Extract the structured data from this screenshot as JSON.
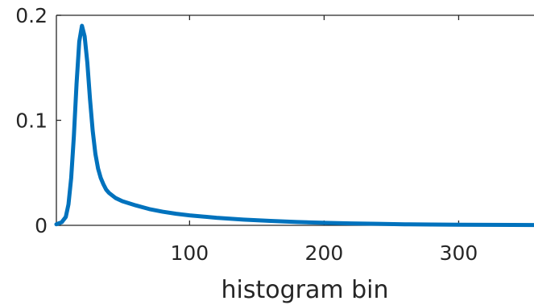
{
  "chart_data": {
    "type": "line",
    "title": "",
    "xlabel": "histogram bin",
    "ylabel": "",
    "xlim": [
      1,
      356
    ],
    "ylim": [
      0,
      0.2
    ],
    "x_ticks": [
      100,
      200,
      300
    ],
    "x_tick_labels": [
      "100",
      "200",
      "300"
    ],
    "y_ticks": [
      0,
      0.1,
      0.2
    ],
    "y_tick_labels": [
      "0",
      "0.1",
      "0.2"
    ],
    "grid": false,
    "legend": "none",
    "colors": {
      "series": "#0072BD",
      "axes": "#262626"
    },
    "series": [
      {
        "x": [
          1,
          5,
          8,
          10,
          12,
          14,
          16,
          18,
          20,
          22,
          24,
          26,
          28,
          30,
          32,
          34,
          36,
          38,
          40,
          45,
          50,
          55,
          60,
          70,
          80,
          90,
          100,
          120,
          140,
          160,
          180,
          200,
          220,
          240,
          260,
          280,
          300,
          320,
          340,
          356
        ],
        "y": [
          0.001,
          0.003,
          0.008,
          0.02,
          0.045,
          0.085,
          0.135,
          0.175,
          0.19,
          0.18,
          0.155,
          0.12,
          0.09,
          0.068,
          0.054,
          0.045,
          0.039,
          0.034,
          0.031,
          0.026,
          0.023,
          0.021,
          0.019,
          0.0155,
          0.013,
          0.011,
          0.0095,
          0.0072,
          0.0055,
          0.0042,
          0.0032,
          0.0024,
          0.0018,
          0.0014,
          0.001,
          0.0008,
          0.0006,
          0.0005,
          0.0004,
          0.0003
        ]
      }
    ]
  }
}
